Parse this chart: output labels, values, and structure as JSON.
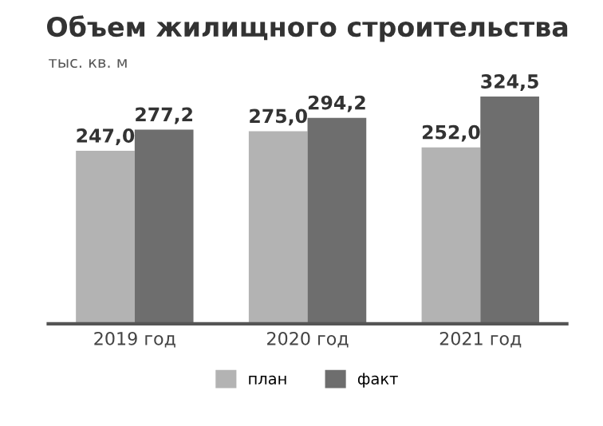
{
  "chart_data": {
    "type": "bar",
    "title": "Объем жилищного строительства",
    "ylabel": "тыс. кв. м",
    "categories": [
      "2019 год",
      "2020 год",
      "2021 год"
    ],
    "series": [
      {
        "name": "план",
        "color": "#b3b3b3",
        "values": [
          247.0,
          275.0,
          252.0
        ],
        "value_labels": [
          "247,0",
          "275,0",
          "252,0"
        ]
      },
      {
        "name": "факт",
        "color": "#6e6e6e",
        "values": [
          277.2,
          294.2,
          324.5
        ],
        "value_labels": [
          "277,2",
          "294,2",
          "324,5"
        ]
      }
    ],
    "legend": "bottom",
    "grid": false,
    "tick_labels": "x"
  }
}
